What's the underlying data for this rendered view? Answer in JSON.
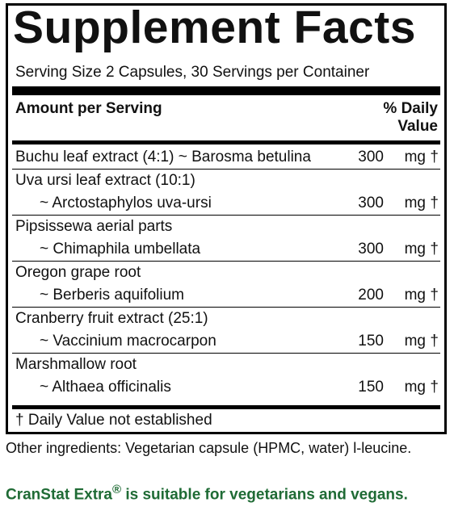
{
  "title": "Supplement Facts",
  "serving": "Serving Size 2 Capsules, 30 Servings per Container",
  "header": {
    "amount": "Amount per Serving",
    "daily_value": "% Daily Value"
  },
  "rows": [
    {
      "lines": [
        "Buchu leaf extract (4:1) ~ Barosma betulina"
      ],
      "amount": "300",
      "unit": "mg",
      "mark": "†"
    },
    {
      "lines": [
        "Uva ursi leaf extract (10:1)",
        "~ Arctostaphylos uva-ursi"
      ],
      "amount": "300",
      "unit": "mg",
      "mark": "†"
    },
    {
      "lines": [
        "Pipsissewa aerial parts",
        "~ Chimaphila umbellata"
      ],
      "amount": "300",
      "unit": "mg",
      "mark": "†"
    },
    {
      "lines": [
        "Oregon grape root",
        "~ Berberis aquifolium"
      ],
      "amount": "200",
      "unit": "mg",
      "mark": "†"
    },
    {
      "lines": [
        "Cranberry fruit extract (25:1)",
        "~ Vaccinium macrocarpon"
      ],
      "amount": "150",
      "unit": "mg",
      "mark": "†"
    },
    {
      "lines": [
        "Marshmallow root",
        "~ Althaea officinalis"
      ],
      "amount": "150",
      "unit": "mg",
      "mark": "†"
    }
  ],
  "footnote": "† Daily Value not established",
  "other_ingredients": "Other ingredients: Vegetarian capsule (HPMC, water) l-leucine.",
  "note": {
    "brand": "CranStat Extra",
    "reg": "®",
    "text": " is suitable for vegetarians and vegans."
  }
}
